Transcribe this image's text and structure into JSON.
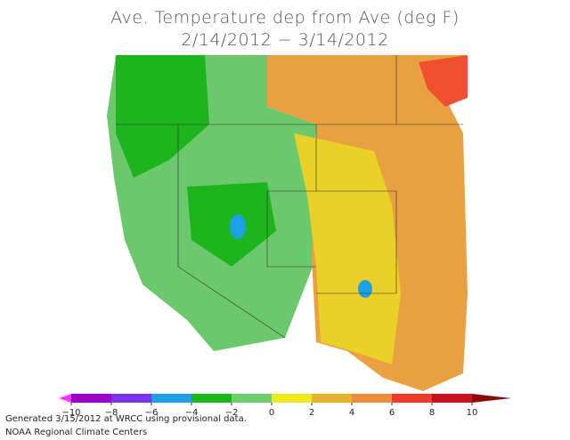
{
  "title": [
    "Ave. Temperature dep from Ave (deg F)",
    "2/14/2012 − 3/14/2012"
  ],
  "colorbar": {
    "ticks": [
      {
        "value": -10,
        "label": "−10"
      },
      {
        "value": -8,
        "label": "−8"
      },
      {
        "value": -6,
        "label": "−6"
      },
      {
        "value": -4,
        "label": "−4"
      },
      {
        "value": -2,
        "label": "−2"
      },
      0,
      2,
      4,
      6,
      8,
      10
    ],
    "colors": [
      "#ff33ff",
      "#9a00cc",
      "#7a33ee",
      "#1ea0e6",
      "#1db41d",
      "#6cd06c",
      "#ebeb1e",
      "#e6b428",
      "#eb8c3c",
      "#ee3c28",
      "#c8141e",
      "#8c0a0a"
    ]
  },
  "footer": [
    "Generated 3/15/2012 at WRCC using provisional data.",
    "NOAA Regional Climate Centers"
  ]
}
